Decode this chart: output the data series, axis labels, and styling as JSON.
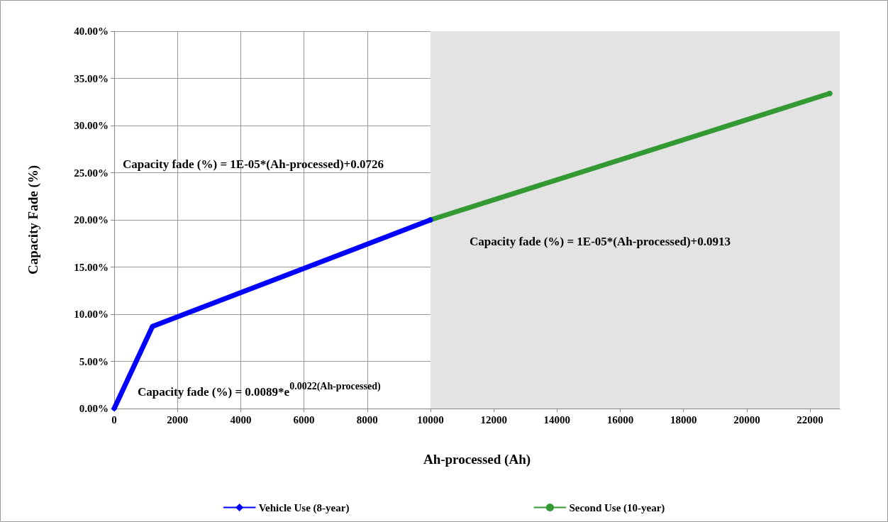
{
  "chart_data": {
    "type": "line",
    "xlabel": "Ah-processed (Ah)",
    "ylabel": "Capacity Fade (%)",
    "series": [
      {
        "name": "Vehicle Use (8-year)",
        "color": "#0000ff",
        "marker": "diamond",
        "x": [
          0,
          1210,
          10000
        ],
        "values": [
          0,
          8.7,
          20.0
        ]
      },
      {
        "name": "Second Use (10-year)",
        "color": "#339933",
        "marker": "circle",
        "x": [
          10000,
          22620
        ],
        "values": [
          20.0,
          33.4
        ]
      }
    ],
    "xlim": [
      0,
      22940
    ],
    "xticks": [
      0,
      2000,
      4000,
      6000,
      8000,
      10000,
      12000,
      14000,
      16000,
      18000,
      20000,
      22000
    ],
    "ylim": [
      0,
      40
    ],
    "yticks": [
      {
        "value": 0,
        "label": "0.00%"
      },
      {
        "value": 5,
        "label": "5.00%"
      },
      {
        "value": 10,
        "label": "10.00%"
      },
      {
        "value": 15,
        "label": "15.00%"
      },
      {
        "value": 20,
        "label": "20.00%"
      },
      {
        "value": 25,
        "label": "25.00%"
      },
      {
        "value": 30,
        "label": "30.00%"
      },
      {
        "value": 35,
        "label": "35.00%"
      },
      {
        "value": 40,
        "label": "40.00%"
      }
    ],
    "bands": [
      {
        "axis": "x",
        "from": 10000,
        "to": 22940,
        "color": "#e3e3e3"
      }
    ],
    "annotations": [
      "Capacity fade (%) = 1E-05*(Ah-processed)+0.0726",
      "Capacity fade (%) = 1E-05*(Ah-processed)+0.0913",
      "Capacity fade (%) = 0.0089*e$^{0.0022(Ah-processed)}$"
    ],
    "grid": true,
    "legend": "bottom",
    "line_style": "solid"
  }
}
